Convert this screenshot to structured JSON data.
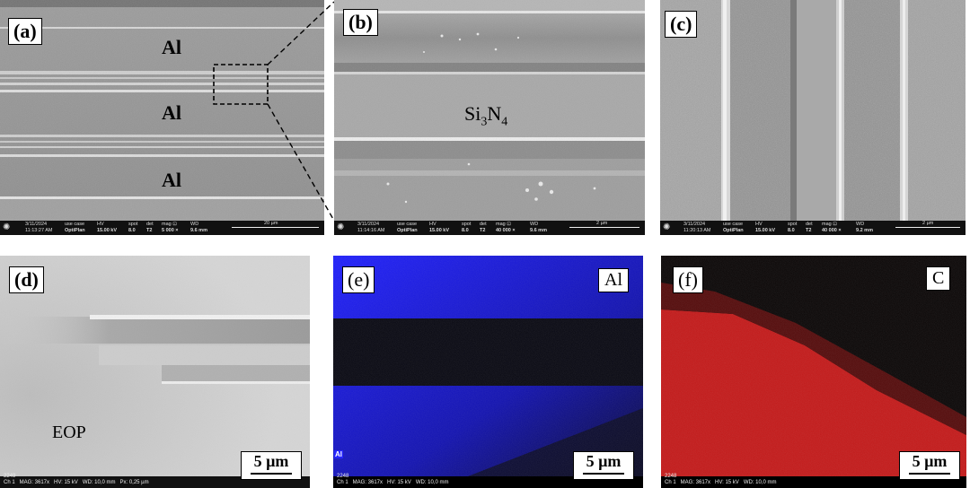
{
  "panels": {
    "a": {
      "label": "(a)",
      "texts": [
        "Al",
        "Al",
        "Al"
      ],
      "infobar": {
        "date": "3/11/2024",
        "time": "11:13:27 AM",
        "usecase_h": "use case",
        "usecase": "OptiPlan",
        "hv_h": "HV",
        "hv": "15.00 kV",
        "spot_h": "spot",
        "spot": "8.0",
        "det_h": "det",
        "det": "T2",
        "mag_h": "mag ⊡",
        "mag": "5 000 ×",
        "wd_h": "WD",
        "wd": "9.6 mm",
        "scale": "20 µm"
      }
    },
    "b": {
      "label": "(b)",
      "text_main": "Si",
      "text_sub1": "3",
      "text_n": "N",
      "text_sub2": "4",
      "infobar": {
        "date": "3/11/2024",
        "time": "11:14:16 AM",
        "usecase_h": "use case",
        "usecase": "OptiPlan",
        "hv_h": "HV",
        "hv": "15.00 kV",
        "spot_h": "spot",
        "spot": "8.0",
        "det_h": "det",
        "det": "T2",
        "mag_h": "mag ⊡",
        "mag": "40 000 ×",
        "wd_h": "WD",
        "wd": "9.6 mm",
        "scale": "2 µm"
      }
    },
    "c": {
      "label": "(c)",
      "infobar": {
        "date": "3/11/2024",
        "time": "11:20:13 AM",
        "usecase_h": "use case",
        "usecase": "OptiPlan",
        "hv_h": "HV",
        "hv": "15.00 kV",
        "spot_h": "spot",
        "spot": "8.0",
        "det_h": "det",
        "det": "T2",
        "mag_h": "mag ⊡",
        "mag": "40 000 ×",
        "wd_h": "WD",
        "wd": "9.2 mm",
        "scale": "2 µm"
      }
    },
    "d": {
      "label": "(d)",
      "text": "EOP",
      "scale": "5 µm",
      "eds_id": "2249",
      "eds_info": "Ch 1   MAG: 3617x   HV: 15 kV   WD: 10,0 mm   Px: 0,25 µm"
    },
    "e": {
      "label": "(e)",
      "element": "Al",
      "corner_tag": "Al",
      "scale": "5 µm",
      "eds_id": "2248",
      "eds_info": "Ch 1   MAG: 3617x   HV: 15 kV   WD: 10,0 mm"
    },
    "f": {
      "label": "(f)",
      "element": "C",
      "scale": "5 µm",
      "eds_id": "2248",
      "eds_info": "Ch 1   MAG: 3617x   HV: 15 kV   WD: 10,0 mm"
    }
  }
}
